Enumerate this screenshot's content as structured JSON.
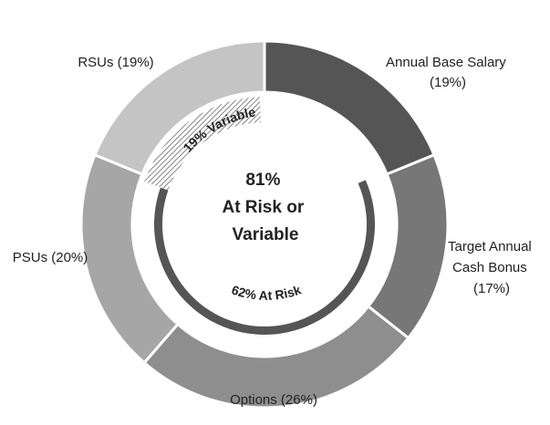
{
  "chart_data": {
    "type": "pie",
    "style": "donut",
    "slices": [
      {
        "name": "Annual Base Salary",
        "value": 19,
        "label_lines": [
          "Annual Base Salary",
          "(19%)"
        ],
        "color": "#555555"
      },
      {
        "name": "Target Annual Cash Bonus",
        "value": 17,
        "label_lines": [
          "Target Annual",
          "Cash Bonus",
          "(17%)"
        ],
        "color": "#777777"
      },
      {
        "name": "Options",
        "value": 26,
        "label_lines": [
          "Options (26%)"
        ],
        "color": "#8e8e8e"
      },
      {
        "name": "PSUs",
        "value": 20,
        "label_lines": [
          "PSUs (20%)"
        ],
        "color": "#a6a6a6"
      },
      {
        "name": "RSUs",
        "value": 19,
        "label_lines": [
          "RSUs (19%)"
        ],
        "color": "#c4c4c4"
      }
    ],
    "inner_arcs": [
      {
        "name": "variable",
        "label": "19% Variable",
        "value": 19,
        "pattern": "hatched"
      },
      {
        "name": "at-risk",
        "label": "62% At Risk",
        "value": 62,
        "pattern": "solid",
        "color": "#555555"
      }
    ],
    "center_label_lines": [
      "81%",
      "At Risk or",
      "Variable"
    ]
  }
}
